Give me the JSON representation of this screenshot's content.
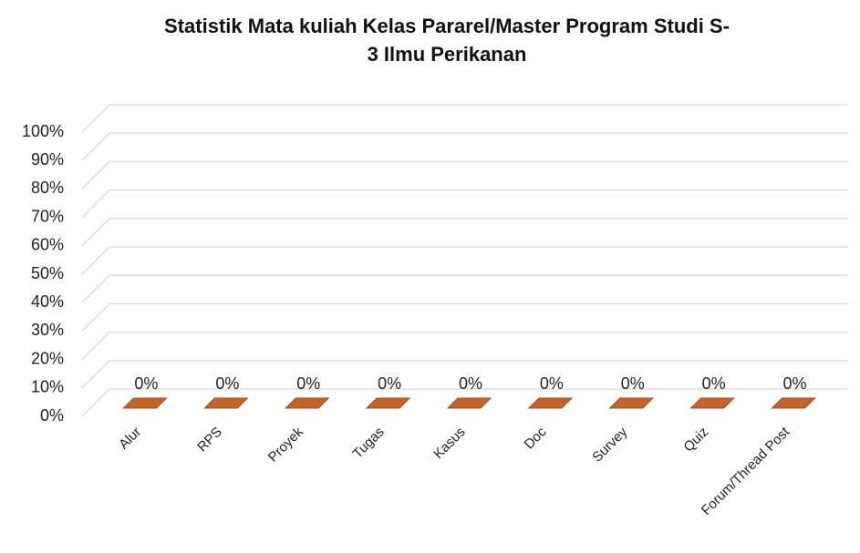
{
  "chart_data": {
    "type": "bar3d",
    "title": [
      "Statistik Mata kuliah Kelas Pararel/Master Program Studi S-",
      "3 Ilmu Perikanan"
    ],
    "categories": [
      "Alur",
      "RPS",
      "Proyek",
      "Tugas",
      "Kasus",
      "Doc",
      "Survey",
      "Quiz",
      "Forum/Thread Post"
    ],
    "values": [
      0,
      0,
      0,
      0,
      0,
      0,
      0,
      0,
      0
    ],
    "value_labels": [
      "0%",
      "0%",
      "0%",
      "0%",
      "0%",
      "0%",
      "0%",
      "0%",
      "0%"
    ],
    "color": "#c5642a",
    "ylim": [
      0,
      100
    ],
    "yticks": [
      {
        "value": 0,
        "label": "0%"
      },
      {
        "value": 10,
        "label": "10%"
      },
      {
        "value": 20,
        "label": "20%"
      },
      {
        "value": 30,
        "label": "30%"
      },
      {
        "value": 40,
        "label": "40%"
      },
      {
        "value": 50,
        "label": "50%"
      },
      {
        "value": 60,
        "label": "60%"
      },
      {
        "value": 70,
        "label": "70%"
      },
      {
        "value": 80,
        "label": "80%"
      },
      {
        "value": 90,
        "label": "90%"
      },
      {
        "value": 100,
        "label": "100%"
      }
    ],
    "grid": true
  }
}
